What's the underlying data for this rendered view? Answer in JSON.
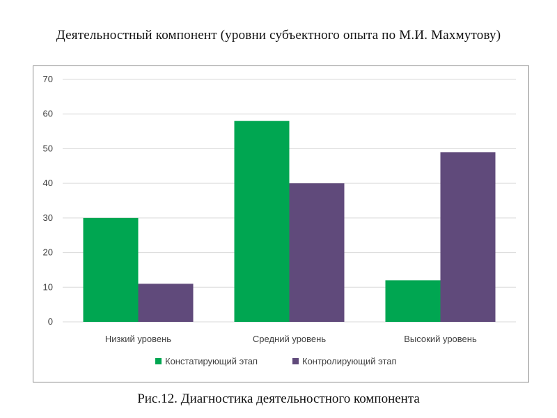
{
  "title": "Деятельностный компонент (уровни субъектного опыта по М.И. Махмутову)",
  "caption": "Рис.12. Диагностика деятельностного компонента",
  "chart_data": {
    "type": "bar",
    "categories": [
      "Низкий уровень",
      "Средний уровень",
      "Высокий уровень"
    ],
    "series": [
      {
        "name": "Констатирующий этап",
        "values": [
          30,
          58,
          12
        ],
        "color": "#00a651"
      },
      {
        "name": "Контролирующий этап",
        "values": [
          11,
          40,
          49
        ],
        "color": "#604a7b"
      }
    ],
    "ylim": [
      0,
      70
    ],
    "yticks": [
      0,
      10,
      20,
      30,
      40,
      50,
      60,
      70
    ],
    "grid": true,
    "legend_position": "bottom",
    "xlabel": "",
    "ylabel": ""
  }
}
